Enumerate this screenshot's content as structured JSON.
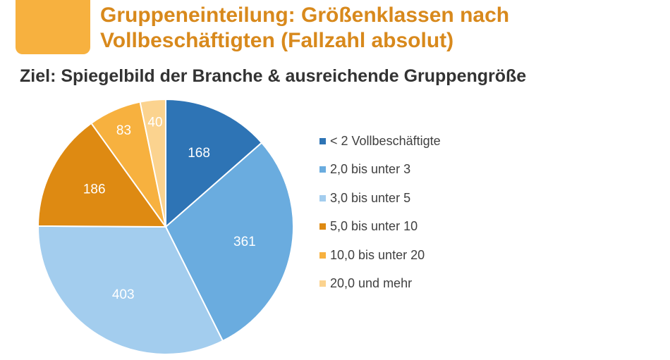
{
  "header": {
    "title_line1": "Gruppeneinteilung: Größenklassen nach",
    "title_line2": "Vollbeschäftigten (Fallzahl absolut)",
    "subtitle": "Ziel: Spiegelbild der Branche & ausreichende Gruppengröße"
  },
  "colors": {
    "accent": "#f7b13f",
    "title": "#d8891c"
  },
  "chart_data": {
    "type": "pie",
    "title": "Gruppeneinteilung: Größenklassen nach Vollbeschäftigten (Fallzahl absolut)",
    "subtitle": "Ziel: Spiegelbild der Branche & ausreichende Gruppengröße",
    "legend_position": "right",
    "slices": [
      {
        "label": "< 2 Vollbeschäftigte",
        "value": 168,
        "color": "#2e74b5"
      },
      {
        "label": "2,0 bis unter 3",
        "value": 361,
        "color": "#6aacdf"
      },
      {
        "label": "3,0 bis unter 5",
        "value": 403,
        "color": "#a3cdee"
      },
      {
        "label": "5,0 bis unter 10",
        "value": 186,
        "color": "#de8a12"
      },
      {
        "label": "10,0 bis unter 20",
        "value": 83,
        "color": "#f7b13f"
      },
      {
        "label": "20,0 und mehr",
        "value": 40,
        "color": "#fbd38f"
      }
    ]
  }
}
